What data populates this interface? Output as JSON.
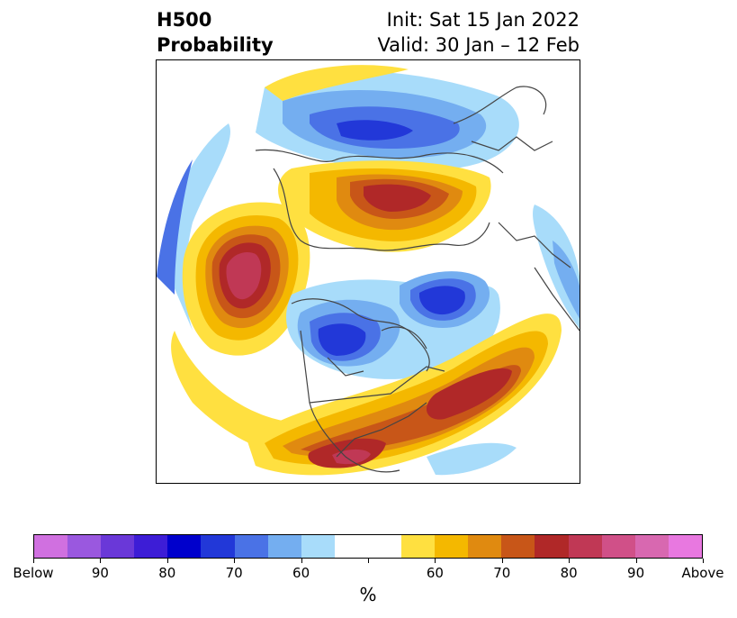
{
  "header": {
    "title_line1": "H500",
    "title_line2": "Probability",
    "init_label": "Init: Sat 15 Jan 2022",
    "valid_label": "Valid: 30 Jan – 12 Feb"
  },
  "colorbar": {
    "unit": "%",
    "colors": [
      "#d070e0",
      "#9a58df",
      "#6a38d8",
      "#3d1dd6",
      "#0000cc",
      "#2238d8",
      "#4a72e6",
      "#74aef0",
      "#a8dcfa",
      "#ffffff",
      "#ffffff",
      "#ffe040",
      "#f4b800",
      "#e08a10",
      "#c85618",
      "#b02828",
      "#c03855",
      "#d05088",
      "#d868b0",
      "#e878e0"
    ],
    "tick_labels": [
      "Below",
      "90",
      "80",
      "70",
      "60",
      "",
      "60",
      "70",
      "80",
      "90",
      "Above"
    ]
  },
  "map": {
    "projection": "north-polar-stereographic",
    "colors": {
      "ocean_bg": "#ffffff",
      "borders": "#444444"
    }
  }
}
